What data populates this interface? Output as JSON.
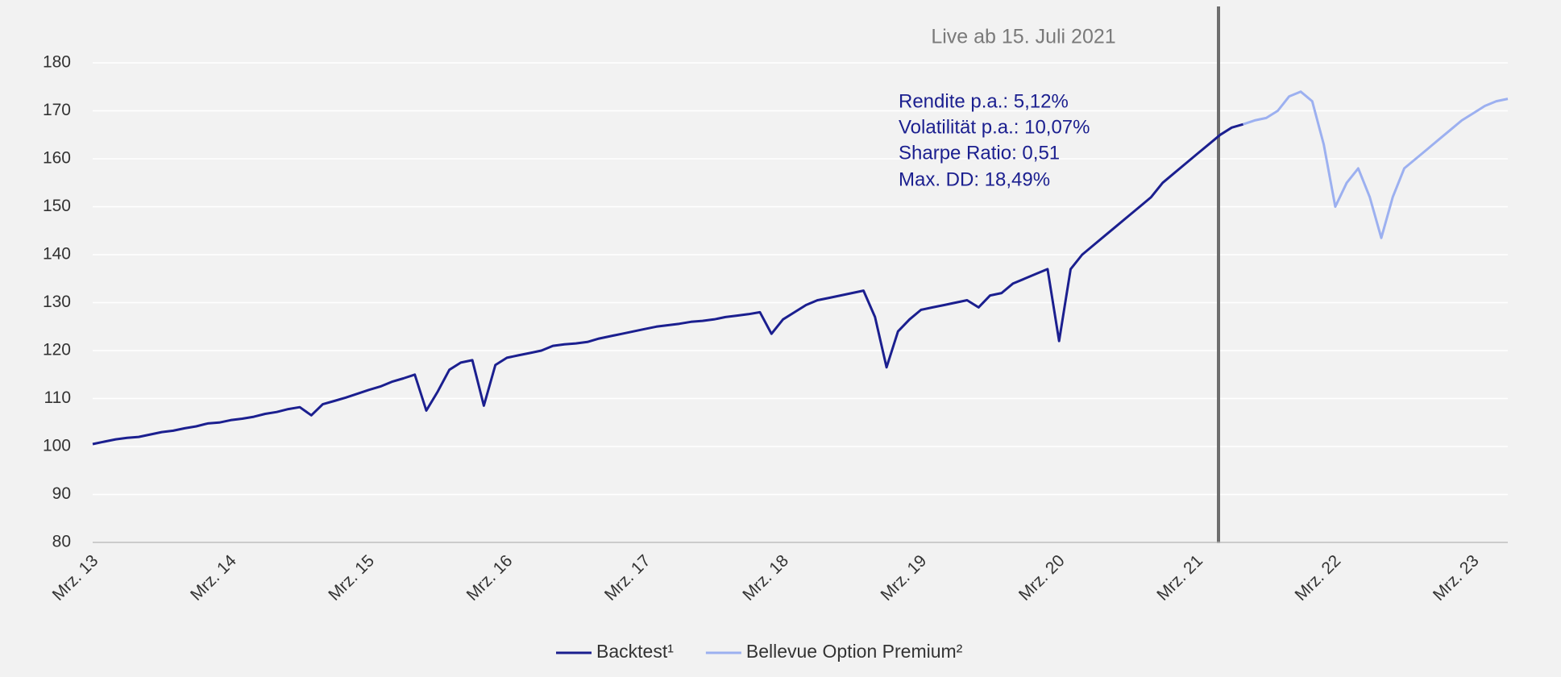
{
  "chart_data": {
    "type": "line",
    "categories": [
      "Mrz. 13",
      null,
      null,
      null,
      null,
      null,
      null,
      null,
      null,
      null,
      null,
      null,
      "Mrz. 14",
      null,
      null,
      null,
      null,
      null,
      null,
      null,
      null,
      null,
      null,
      null,
      "Mrz. 15",
      null,
      null,
      null,
      null,
      null,
      null,
      null,
      null,
      null,
      null,
      null,
      "Mrz. 16",
      null,
      null,
      null,
      null,
      null,
      null,
      null,
      null,
      null,
      null,
      null,
      "Mrz. 17",
      null,
      null,
      null,
      null,
      null,
      null,
      null,
      null,
      null,
      null,
      null,
      "Mrz. 18",
      null,
      null,
      null,
      null,
      null,
      null,
      null,
      null,
      null,
      null,
      null,
      "Mrz. 19",
      null,
      null,
      null,
      null,
      null,
      null,
      null,
      null,
      null,
      null,
      null,
      "Mrz. 20",
      null,
      null,
      null,
      null,
      null,
      null,
      null,
      null,
      null,
      null,
      null,
      "Mrz. 21",
      null,
      null,
      null,
      null,
      null,
      null,
      null,
      null,
      null,
      null,
      null,
      "Mrz. 22",
      null,
      null,
      null,
      null,
      null,
      null,
      null,
      null,
      null,
      null,
      null,
      "Mrz. 23",
      null,
      null,
      null
    ],
    "series": [
      {
        "name": "Backtest¹",
        "color": "#1b1f8f",
        "values": [
          100.5,
          101,
          101.5,
          101.8,
          102,
          102.5,
          103,
          103.3,
          103.8,
          104.2,
          104.8,
          105,
          105.5,
          105.8,
          106.2,
          106.8,
          107.2,
          107.8,
          108.2,
          106.5,
          108.8,
          109.5,
          110.2,
          111,
          111.8,
          112.5,
          113.5,
          114.2,
          115,
          107.5,
          111.5,
          116,
          117.5,
          118,
          108.5,
          117,
          118.5,
          119,
          119.5,
          120,
          121,
          121.3,
          121.5,
          121.8,
          122.5,
          123,
          123.5,
          124,
          124.5,
          125,
          125.3,
          125.6,
          126,
          126.2,
          126.5,
          127,
          127.3,
          127.6,
          128,
          123.5,
          126.5,
          128,
          129.5,
          130.5,
          131,
          131.5,
          132,
          132.5,
          127,
          116.5,
          124,
          126.5,
          128.5,
          129,
          129.5,
          130,
          130.5,
          129,
          131.5,
          132,
          134,
          135,
          136,
          137,
          122,
          137,
          140,
          142,
          144,
          146,
          148,
          150,
          152,
          155,
          157,
          159,
          161,
          163,
          165,
          166.5,
          167.2,
          null,
          null,
          null,
          null,
          null,
          null,
          null,
          null,
          null,
          null,
          null,
          null,
          null,
          null,
          null,
          null,
          null,
          null,
          null,
          null,
          null,
          null,
          null
        ]
      },
      {
        "name": "Bellevue Option Premium²",
        "color": "#9cb0f0",
        "values": [
          null,
          null,
          null,
          null,
          null,
          null,
          null,
          null,
          null,
          null,
          null,
          null,
          null,
          null,
          null,
          null,
          null,
          null,
          null,
          null,
          null,
          null,
          null,
          null,
          null,
          null,
          null,
          null,
          null,
          null,
          null,
          null,
          null,
          null,
          null,
          null,
          null,
          null,
          null,
          null,
          null,
          null,
          null,
          null,
          null,
          null,
          null,
          null,
          null,
          null,
          null,
          null,
          null,
          null,
          null,
          null,
          null,
          null,
          null,
          null,
          null,
          null,
          null,
          null,
          null,
          null,
          null,
          null,
          null,
          null,
          null,
          null,
          null,
          null,
          null,
          null,
          null,
          null,
          null,
          null,
          null,
          null,
          null,
          null,
          null,
          null,
          null,
          null,
          null,
          null,
          null,
          null,
          null,
          null,
          null,
          null,
          null,
          null,
          null,
          null,
          167.2,
          168,
          168.5,
          170,
          173,
          174,
          172,
          163,
          150,
          155,
          158,
          152,
          143.5,
          152,
          158,
          160,
          162,
          164,
          166,
          168,
          169.5,
          171,
          172,
          172.5
        ]
      }
    ],
    "ylim": [
      80,
      180
    ],
    "yticks": [
      80,
      90,
      100,
      110,
      120,
      130,
      140,
      150,
      160,
      170,
      180
    ],
    "grid": true,
    "annotations": {
      "live": "Live ab 15. Juli 2021",
      "stats": [
        "Rendite p.a.: 5,12%",
        "Volatilität p.a.: 10,07%",
        "Sharpe Ratio: 0,51",
        "Max. DD: 18,49%"
      ]
    },
    "legend": "bottom"
  }
}
